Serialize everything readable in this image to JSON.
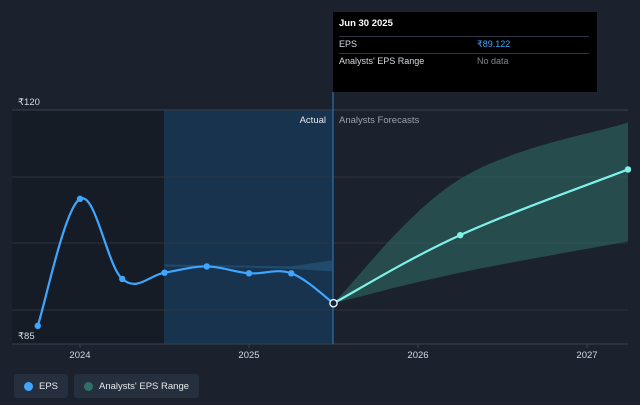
{
  "chart_data": {
    "type": "line",
    "currency_prefix": "₹",
    "y_axis_labels": [
      "₹120",
      "₹85"
    ],
    "ylim": [
      85,
      120
    ],
    "x_ticks": [
      {
        "label": "2024",
        "t": 2024.0
      },
      {
        "label": "2025",
        "t": 2025.0
      },
      {
        "label": "2026",
        "t": 2026.0
      },
      {
        "label": "2027",
        "t": 2027.0
      }
    ],
    "xlim": [
      2023.6,
      2027.25
    ],
    "region_labels": {
      "actual": "Actual",
      "forecast": "Analysts Forecasts"
    },
    "actual_boundary": 2025.5,
    "series": [
      {
        "name": "EPS",
        "color": "#3ea6ff",
        "points": [
          {
            "t": 2023.75,
            "v": 85.5
          },
          {
            "t": 2024.0,
            "v": 105.8
          },
          {
            "t": 2024.25,
            "v": 93.0
          },
          {
            "t": 2024.5,
            "v": 94.0
          },
          {
            "t": 2024.75,
            "v": 95.0
          },
          {
            "t": 2025.0,
            "v": 93.9
          },
          {
            "t": 2025.25,
            "v": 93.9
          },
          {
            "t": 2025.5,
            "v": 89.122
          }
        ]
      },
      {
        "name": "EPS Forecast",
        "color": "#7ff1e8",
        "points": [
          {
            "t": 2025.5,
            "v": 89.122
          },
          {
            "t": 2026.25,
            "v": 100.0
          },
          {
            "t": 2027.25,
            "v": 110.5
          }
        ]
      }
    ],
    "analysts_range": {
      "name": "Analysts' EPS Range",
      "color": "#2f6f6a",
      "low": [
        {
          "t": 2025.5,
          "v": 89.122
        },
        {
          "t": 2026.25,
          "v": 94.0
        },
        {
          "t": 2027.25,
          "v": 99.0
        }
      ],
      "high": [
        {
          "t": 2025.5,
          "v": 89.122
        },
        {
          "t": 2026.25,
          "v": 109.0
        },
        {
          "t": 2027.25,
          "v": 118.0
        }
      ]
    },
    "past_estimate_band": {
      "low": [
        {
          "t": 2024.5,
          "v": 95.0
        },
        {
          "t": 2025.0,
          "v": 94.8
        },
        {
          "t": 2025.25,
          "v": 94.6
        },
        {
          "t": 2025.5,
          "v": 94.2
        }
      ],
      "high": [
        {
          "t": 2024.5,
          "v": 95.3
        },
        {
          "t": 2025.0,
          "v": 95.1
        },
        {
          "t": 2025.25,
          "v": 95.0
        },
        {
          "t": 2025.5,
          "v": 96.0
        }
      ]
    }
  },
  "tooltip": {
    "date": "Jun 30 2025",
    "rows": [
      {
        "label": "EPS",
        "value": "₹89.122"
      },
      {
        "label": "Analysts' EPS Range",
        "value": "No data"
      }
    ]
  },
  "legend": [
    {
      "label": "EPS",
      "color": "#3ea6ff"
    },
    {
      "label": "Analysts' EPS Range",
      "color": "#2f6f6a"
    }
  ]
}
